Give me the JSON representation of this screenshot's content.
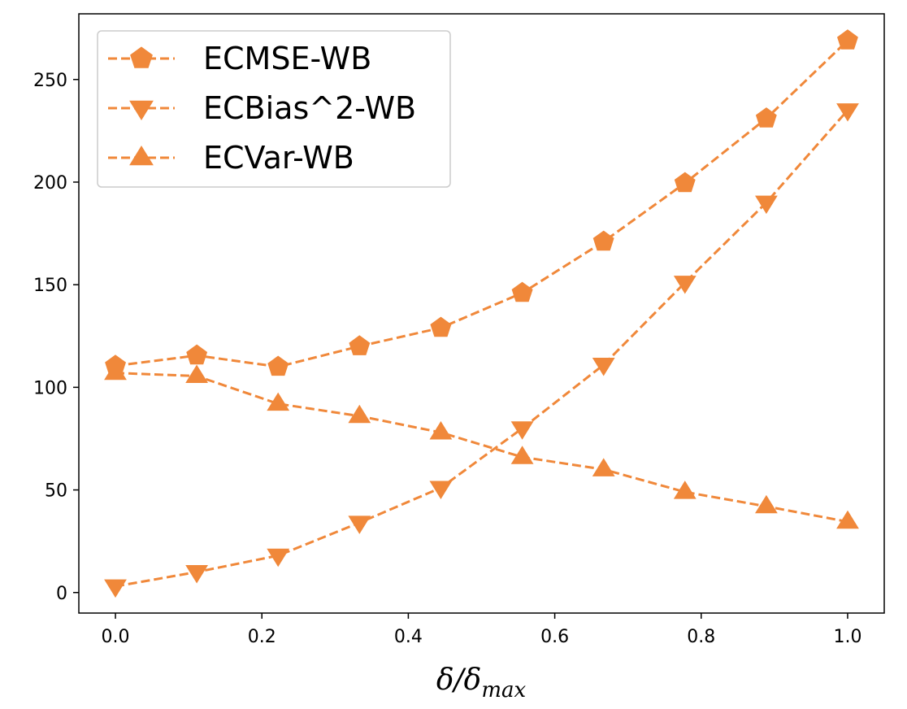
{
  "chart_data": {
    "type": "line",
    "title": "",
    "xlabel": "δ/δmax",
    "xlabel_parts": {
      "main": "δ/δ",
      "sub": "max"
    },
    "ylabel": "",
    "x": [
      0.0,
      0.1111,
      0.2222,
      0.3333,
      0.4444,
      0.5556,
      0.6667,
      0.7778,
      0.8889,
      1.0
    ],
    "xlim": [
      -0.05,
      1.05
    ],
    "ylim": [
      -10,
      282
    ],
    "xticks": [
      0.0,
      0.2,
      0.4,
      0.6,
      0.8,
      1.0
    ],
    "xtick_labels": [
      "0.0",
      "0.2",
      "0.4",
      "0.6",
      "0.8",
      "1.0"
    ],
    "yticks": [
      0,
      50,
      100,
      150,
      200,
      250
    ],
    "ytick_labels": [
      "0",
      "50",
      "100",
      "150",
      "200",
      "250"
    ],
    "grid": false,
    "legend_position": "upper-left",
    "color": "#f0883a",
    "series": [
      {
        "name": "ECMSE-WB",
        "marker": "pentagon",
        "values": [
          110.5,
          115.5,
          110,
          120,
          129,
          146,
          171,
          199.5,
          231,
          269
        ]
      },
      {
        "name": "ECBias^2-WB",
        "marker": "triangle-down",
        "values": [
          3,
          10,
          18,
          34,
          51,
          80,
          111,
          151,
          190,
          235
        ]
      },
      {
        "name": "ECVar-WB",
        "marker": "triangle-up",
        "values": [
          107,
          105.5,
          92,
          86,
          78,
          66,
          60,
          49,
          42,
          34.5
        ]
      }
    ]
  }
}
